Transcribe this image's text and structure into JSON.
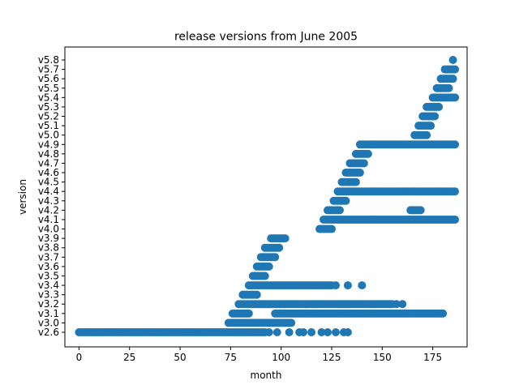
{
  "chart_data": {
    "type": "scatter",
    "title": "release versions from June 2005",
    "xlabel": "month",
    "ylabel": "version",
    "xlim": [
      -7,
      192
    ],
    "x_ticks": [
      0,
      25,
      50,
      75,
      100,
      125,
      150,
      175
    ],
    "categories": [
      "v2.6",
      "v3.0",
      "v3.1",
      "v3.2",
      "v3.3",
      "v3.4",
      "v3.5",
      "v3.6",
      "v3.7",
      "v3.8",
      "v3.9",
      "v4.0",
      "v4.1",
      "v4.2",
      "v4.3",
      "v4.4",
      "v4.5",
      "v4.6",
      "v4.7",
      "v4.8",
      "v4.9",
      "v5.0",
      "v5.1",
      "v5.2",
      "v5.3",
      "v5.4",
      "v5.5",
      "v5.6",
      "v5.7",
      "v5.8"
    ],
    "marker_color": "#1f77b4",
    "grid": false,
    "legend": "none",
    "segments": [
      {
        "version": "v2.6",
        "x_start": 0,
        "x_end": 92
      },
      {
        "version": "v3.0",
        "x_start": 74,
        "x_end": 105
      },
      {
        "version": "v3.1",
        "x_start": 76,
        "x_end": 84
      },
      {
        "version": "v3.1",
        "x_start": 97,
        "x_end": 180
      },
      {
        "version": "v3.2",
        "x_start": 79,
        "x_end": 155
      },
      {
        "version": "v3.3",
        "x_start": 81,
        "x_end": 88
      },
      {
        "version": "v3.4",
        "x_start": 84,
        "x_end": 125
      },
      {
        "version": "v3.5",
        "x_start": 86,
        "x_end": 92
      },
      {
        "version": "v3.6",
        "x_start": 88,
        "x_end": 94
      },
      {
        "version": "v3.7",
        "x_start": 90,
        "x_end": 97
      },
      {
        "version": "v3.8",
        "x_start": 92,
        "x_end": 99
      },
      {
        "version": "v3.9",
        "x_start": 95,
        "x_end": 102
      },
      {
        "version": "v4.0",
        "x_start": 119,
        "x_end": 125
      },
      {
        "version": "v4.1",
        "x_start": 121,
        "x_end": 186
      },
      {
        "version": "v4.2",
        "x_start": 123,
        "x_end": 129
      },
      {
        "version": "v4.2",
        "x_start": 164,
        "x_end": 169
      },
      {
        "version": "v4.3",
        "x_start": 126,
        "x_end": 132
      },
      {
        "version": "v4.4",
        "x_start": 128,
        "x_end": 186
      },
      {
        "version": "v4.5",
        "x_start": 130,
        "x_end": 137
      },
      {
        "version": "v4.6",
        "x_start": 132,
        "x_end": 139
      },
      {
        "version": "v4.7",
        "x_start": 134,
        "x_end": 141
      },
      {
        "version": "v4.8",
        "x_start": 137,
        "x_end": 143
      },
      {
        "version": "v4.9",
        "x_start": 139,
        "x_end": 186
      },
      {
        "version": "v5.0",
        "x_start": 166,
        "x_end": 172
      },
      {
        "version": "v5.1",
        "x_start": 168,
        "x_end": 174
      },
      {
        "version": "v5.2",
        "x_start": 170,
        "x_end": 176
      },
      {
        "version": "v5.3",
        "x_start": 172,
        "x_end": 178
      },
      {
        "version": "v5.4",
        "x_start": 175,
        "x_end": 186
      },
      {
        "version": "v5.5",
        "x_start": 177,
        "x_end": 183
      },
      {
        "version": "v5.6",
        "x_start": 179,
        "x_end": 185
      },
      {
        "version": "v5.7",
        "x_start": 181,
        "x_end": 186
      },
      {
        "version": "v5.8",
        "x_start": 185,
        "x_end": 185
      }
    ],
    "scattered_points": [
      {
        "version": "v2.6",
        "x": [
          94,
          98,
          104,
          109,
          111,
          115,
          120,
          123,
          127,
          131,
          133
        ]
      },
      {
        "version": "v3.2",
        "x": [
          157,
          160
        ]
      },
      {
        "version": "v3.4",
        "x": [
          127,
          133,
          140
        ]
      }
    ]
  }
}
